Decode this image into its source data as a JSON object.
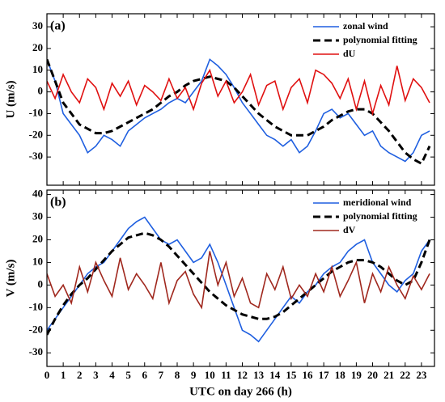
{
  "chart_data": [
    {
      "type": "line",
      "panel_label": "(a)",
      "y_label": "U (m/s)",
      "x": [
        0,
        0.5,
        1,
        1.5,
        2,
        2.5,
        3,
        3.5,
        4,
        4.5,
        5,
        5.5,
        6,
        6.5,
        7,
        7.5,
        8,
        8.5,
        9,
        9.5,
        10,
        10.5,
        11,
        11.5,
        12,
        12.5,
        13,
        13.5,
        14,
        14.5,
        15,
        15.5,
        16,
        16.5,
        17,
        17.5,
        18,
        18.5,
        19,
        19.5,
        20,
        20.5,
        21,
        21.5,
        22,
        22.5,
        23,
        23.5
      ],
      "xlim": [
        0,
        23.8
      ],
      "xticks": [
        0,
        1,
        2,
        3,
        4,
        5,
        6,
        7,
        8,
        9,
        10,
        11,
        12,
        13,
        14,
        15,
        16,
        17,
        18,
        19,
        20,
        21,
        22,
        23
      ],
      "ylim": [
        -43,
        36
      ],
      "yticks": [
        -30,
        -20,
        -10,
        0,
        10,
        20,
        30
      ],
      "legend": "upper right",
      "series": [
        {
          "name": "zonal wind",
          "color": "#1f5fe0",
          "style": "solid",
          "values": [
            15,
            5,
            -10,
            -15,
            -20,
            -28,
            -25,
            -20,
            -22,
            -25,
            -18,
            -15,
            -12,
            -10,
            -8,
            -5,
            -3,
            -5,
            0,
            5,
            15,
            12,
            8,
            2,
            -5,
            -10,
            -15,
            -20,
            -22,
            -25,
            -22,
            -28,
            -25,
            -18,
            -10,
            -8,
            -12,
            -10,
            -15,
            -20,
            -18,
            -25,
            -28,
            -30,
            -32,
            -28,
            -20,
            -18
          ]
        },
        {
          "name": "polynomial fitting",
          "color": "#000000",
          "style": "dashed",
          "values": [
            15,
            5,
            -5,
            -10,
            -15,
            -17,
            -19,
            -19,
            -18,
            -16,
            -14,
            -12,
            -10,
            -8,
            -5,
            -2,
            0,
            3,
            5,
            6,
            7,
            6,
            5,
            2,
            -2,
            -6,
            -10,
            -13,
            -16,
            -18,
            -20,
            -20,
            -20,
            -18,
            -16,
            -13,
            -11,
            -9,
            -8,
            -8,
            -10,
            -14,
            -18,
            -23,
            -28,
            -31,
            -33,
            -25
          ]
        },
        {
          "name": "dU",
          "color": "#e01010",
          "style": "solid",
          "values": [
            5,
            -3,
            8,
            0,
            -5,
            6,
            2,
            -8,
            4,
            -2,
            5,
            -6,
            3,
            0,
            -4,
            6,
            -3,
            2,
            -8,
            4,
            10,
            -2,
            5,
            -5,
            0,
            8,
            -6,
            3,
            5,
            -8,
            2,
            6,
            -5,
            10,
            8,
            4,
            -3,
            6,
            -8,
            5,
            -10,
            3,
            -6,
            12,
            -4,
            6,
            2,
            -5
          ]
        }
      ]
    },
    {
      "type": "line",
      "panel_label": "(b)",
      "y_label": "V (m/s)",
      "x_label": "UTC on day 266 (h)",
      "x": [
        0,
        0.5,
        1,
        1.5,
        2,
        2.5,
        3,
        3.5,
        4,
        4.5,
        5,
        5.5,
        6,
        6.5,
        7,
        7.5,
        8,
        8.5,
        9,
        9.5,
        10,
        10.5,
        11,
        11.5,
        12,
        12.5,
        13,
        13.5,
        14,
        14.5,
        15,
        15.5,
        16,
        16.5,
        17,
        17.5,
        18,
        18.5,
        19,
        19.5,
        20,
        20.5,
        21,
        21.5,
        22,
        22.5,
        23,
        23.5
      ],
      "xlim": [
        0,
        23.8
      ],
      "xticks": [
        0,
        1,
        2,
        3,
        4,
        5,
        6,
        7,
        8,
        9,
        10,
        11,
        12,
        13,
        14,
        15,
        16,
        17,
        18,
        19,
        20,
        21,
        22,
        23
      ],
      "ylim": [
        -36,
        42
      ],
      "yticks": [
        -30,
        -20,
        -10,
        0,
        10,
        20,
        30,
        40
      ],
      "legend": "upper right",
      "series": [
        {
          "name": "meridional wind",
          "color": "#1f5fe0",
          "style": "solid",
          "values": [
            -20,
            -15,
            -10,
            -5,
            0,
            5,
            8,
            10,
            15,
            20,
            25,
            28,
            30,
            25,
            20,
            18,
            20,
            15,
            10,
            12,
            18,
            10,
            0,
            -10,
            -20,
            -22,
            -25,
            -20,
            -15,
            -10,
            -5,
            -8,
            -3,
            0,
            5,
            8,
            10,
            15,
            18,
            20,
            10,
            5,
            0,
            -3,
            2,
            5,
            15,
            20
          ]
        },
        {
          "name": "polynomial fitting",
          "color": "#000000",
          "style": "dashed",
          "values": [
            -22,
            -15,
            -9,
            -4,
            0,
            3,
            7,
            11,
            15,
            18,
            21,
            22,
            23,
            22,
            20,
            17,
            13,
            9,
            5,
            1,
            -3,
            -6,
            -9,
            -11,
            -13,
            -14,
            -15,
            -15,
            -14,
            -12,
            -9,
            -6,
            -3,
            0,
            3,
            6,
            8,
            10,
            11,
            11,
            10,
            8,
            5,
            2,
            0,
            2,
            10,
            20
          ]
        },
        {
          "name": "dV",
          "color": "#a0281e",
          "style": "solid",
          "values": [
            5,
            -5,
            0,
            -8,
            8,
            -3,
            10,
            2,
            -5,
            12,
            -2,
            5,
            0,
            -6,
            10,
            -8,
            2,
            6,
            -4,
            -10,
            15,
            0,
            10,
            -5,
            3,
            -8,
            -10,
            5,
            -2,
            8,
            -6,
            0,
            -5,
            5,
            -3,
            8,
            -5,
            2,
            10,
            -8,
            5,
            -3,
            8,
            0,
            -6,
            4,
            -2,
            5
          ]
        }
      ]
    }
  ]
}
